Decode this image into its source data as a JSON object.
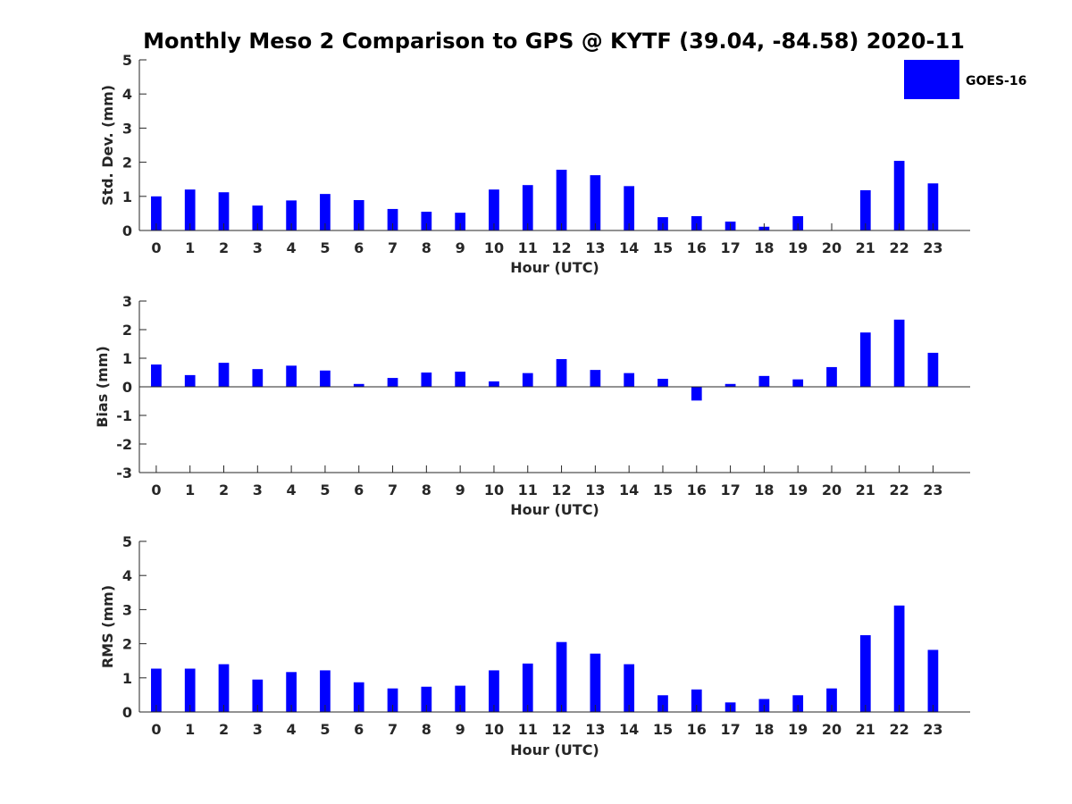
{
  "figure": {
    "title": "Monthly Meso 2 Comparison to GPS @ KYTF (39.04, -84.58) 2020-11",
    "legend": {
      "label": "GOES-16",
      "color": "#0000FF",
      "placement": "top-right"
    }
  },
  "chart_data": [
    {
      "type": "bar",
      "categories": [
        "0",
        "1",
        "2",
        "3",
        "4",
        "5",
        "6",
        "7",
        "8",
        "9",
        "10",
        "11",
        "12",
        "13",
        "14",
        "15",
        "16",
        "17",
        "18",
        "19",
        "20",
        "21",
        "22",
        "23"
      ],
      "series": [
        {
          "name": "GOES-16",
          "color": "#0000FF",
          "values": [
            1.0,
            1.2,
            1.12,
            0.73,
            0.88,
            1.07,
            0.89,
            0.63,
            0.55,
            0.52,
            1.2,
            1.33,
            1.78,
            1.62,
            1.3,
            0.39,
            0.42,
            0.26,
            0.11,
            0.42,
            0.0,
            1.18,
            2.04,
            1.38
          ]
        }
      ],
      "xlabel": "Hour (UTC)",
      "ylabel": "Std. Dev. (mm)",
      "ylim": [
        0,
        5
      ],
      "yticks": [
        0,
        1,
        2,
        3,
        4,
        5
      ],
      "grid": false
    },
    {
      "type": "bar",
      "categories": [
        "0",
        "1",
        "2",
        "3",
        "4",
        "5",
        "6",
        "7",
        "8",
        "9",
        "10",
        "11",
        "12",
        "13",
        "14",
        "15",
        "16",
        "17",
        "18",
        "19",
        "20",
        "21",
        "22",
        "23"
      ],
      "series": [
        {
          "name": "GOES-16",
          "color": "#0000FF",
          "values": [
            0.78,
            0.41,
            0.84,
            0.62,
            0.74,
            0.57,
            0.1,
            0.31,
            0.5,
            0.53,
            0.19,
            0.48,
            0.97,
            0.59,
            0.48,
            0.28,
            -0.48,
            0.1,
            0.38,
            0.26,
            0.69,
            1.9,
            2.35,
            1.19
          ]
        }
      ],
      "xlabel": "Hour (UTC)",
      "ylabel": "Bias (mm)",
      "ylim": [
        -3,
        3
      ],
      "yticks": [
        -3,
        -2,
        -1,
        0,
        1,
        2,
        3
      ],
      "grid": false
    },
    {
      "type": "bar",
      "categories": [
        "0",
        "1",
        "2",
        "3",
        "4",
        "5",
        "6",
        "7",
        "8",
        "9",
        "10",
        "11",
        "12",
        "13",
        "14",
        "15",
        "16",
        "17",
        "18",
        "19",
        "20",
        "21",
        "22",
        "23"
      ],
      "series": [
        {
          "name": "GOES-16",
          "color": "#0000FF",
          "values": [
            1.27,
            1.27,
            1.4,
            0.95,
            1.17,
            1.22,
            0.87,
            0.69,
            0.74,
            0.77,
            1.22,
            1.42,
            2.05,
            1.71,
            1.4,
            0.49,
            0.66,
            0.28,
            0.38,
            0.49,
            0.69,
            2.25,
            3.12,
            1.82
          ]
        }
      ],
      "xlabel": "Hour (UTC)",
      "ylabel": "RMS (mm)",
      "ylim": [
        0,
        5
      ],
      "yticks": [
        0,
        1,
        2,
        3,
        4,
        5
      ],
      "grid": false
    }
  ]
}
